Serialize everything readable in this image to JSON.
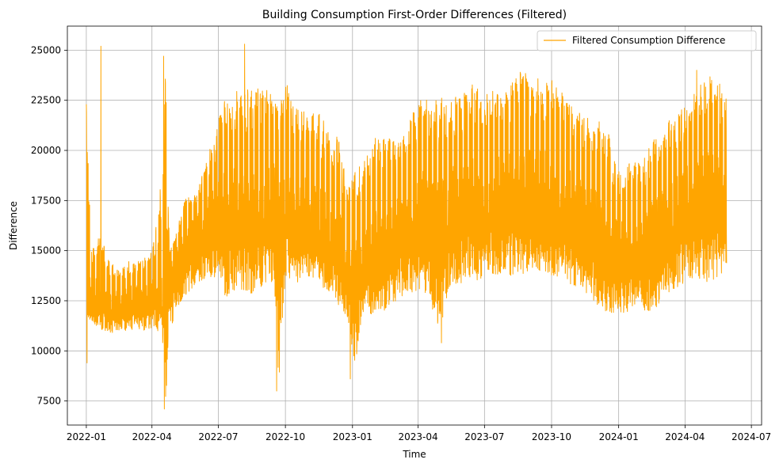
{
  "chart_data": {
    "type": "line",
    "title": "Building Consumption First-Order Differences (Filtered)",
    "xlabel": "Time",
    "ylabel": "Difference",
    "xlim": [
      "2021-12-06",
      "2024-07-15"
    ],
    "ylim": [
      6300,
      26200
    ],
    "x_ticks": [
      "2022-01-01",
      "2022-04-01",
      "2022-07-01",
      "2022-10-01",
      "2023-01-01",
      "2023-04-01",
      "2023-07-01",
      "2023-10-01",
      "2024-01-01",
      "2024-04-01",
      "2024-07-01"
    ],
    "x_tick_labels": [
      "2022-01",
      "2022-04",
      "2022-07",
      "2022-10",
      "2023-01",
      "2023-04",
      "2023-07",
      "2023-10",
      "2024-01",
      "2024-04",
      "2024-07"
    ],
    "y_ticks": [
      7500,
      10000,
      12500,
      15000,
      17500,
      20000,
      22500,
      25000
    ],
    "y_tick_labels": [
      "7500",
      "10000",
      "12500",
      "15000",
      "17500",
      "20000",
      "22500",
      "25000"
    ],
    "grid": true,
    "legend_position": "top-right",
    "series": [
      {
        "name": "Filtered Consumption Difference",
        "color": "#ffa500",
        "envelope": {
          "x": [
            "2022-01-01",
            "2022-01-03",
            "2022-01-08",
            "2022-01-15",
            "2022-01-20",
            "2022-02-01",
            "2022-02-15",
            "2022-03-01",
            "2022-03-15",
            "2022-04-01",
            "2022-04-10",
            "2022-04-15",
            "2022-04-20",
            "2022-04-25",
            "2022-05-01",
            "2022-05-15",
            "2022-06-01",
            "2022-06-15",
            "2022-07-01",
            "2022-07-10",
            "2022-08-01",
            "2022-08-15",
            "2022-09-01",
            "2022-09-15",
            "2022-09-22",
            "2022-10-01",
            "2022-10-15",
            "2022-11-01",
            "2022-11-15",
            "2022-12-01",
            "2022-12-15",
            "2022-12-25",
            "2023-01-05",
            "2023-01-15",
            "2023-02-01",
            "2023-02-15",
            "2023-03-01",
            "2023-03-15",
            "2023-04-01",
            "2023-04-15",
            "2023-05-01",
            "2023-05-15",
            "2023-06-01",
            "2023-06-15",
            "2023-07-01",
            "2023-07-15",
            "2023-08-01",
            "2023-08-15",
            "2023-09-01",
            "2023-09-15",
            "2023-10-01",
            "2023-10-15",
            "2023-11-01",
            "2023-11-15",
            "2023-12-01",
            "2023-12-15",
            "2024-01-01",
            "2024-01-15",
            "2024-02-01",
            "2024-02-15",
            "2024-03-01",
            "2024-03-15",
            "2024-04-01",
            "2024-04-15",
            "2024-05-01",
            "2024-05-15",
            "2024-05-28"
          ],
          "y_high": [
            22300,
            21000,
            15000,
            15500,
            16000,
            14500,
            14000,
            14500,
            14500,
            15000,
            17000,
            19500,
            24700,
            15000,
            15500,
            17500,
            18000,
            19500,
            21500,
            22700,
            23300,
            23000,
            23300,
            23000,
            22000,
            23600,
            22300,
            21800,
            22000,
            21000,
            20700,
            18500,
            19000,
            19500,
            20700,
            20700,
            20500,
            21000,
            22700,
            22500,
            22700,
            22500,
            23000,
            23300,
            22800,
            23000,
            23200,
            23800,
            24000,
            23700,
            23500,
            23000,
            22000,
            21800,
            21500,
            21300,
            19000,
            19500,
            19500,
            20500,
            21200,
            21700,
            22400,
            23000,
            23800,
            23500,
            22800
          ],
          "y_low": [
            9400,
            10900,
            11200,
            11000,
            10900,
            10800,
            10800,
            11000,
            10900,
            11000,
            10800,
            10600,
            7100,
            10500,
            11500,
            12500,
            13200,
            13500,
            13500,
            12400,
            12800,
            12600,
            12900,
            13300,
            8000,
            13400,
            13200,
            13300,
            13100,
            12800,
            12000,
            11500,
            8600,
            11800,
            11500,
            11600,
            12300,
            12600,
            12800,
            12500,
            10400,
            13000,
            13100,
            13200,
            13300,
            13500,
            13400,
            13500,
            13700,
            13600,
            13500,
            13200,
            13000,
            12800,
            12000,
            11700,
            11600,
            11800,
            12000,
            11500,
            12300,
            12700,
            13200,
            13500,
            13100,
            13400,
            13600
          ],
          "y_mid": [
            15500,
            13000,
            12800,
            13000,
            13200,
            12500,
            12500,
            12700,
            12800,
            13000,
            13200,
            13500,
            15500,
            14000,
            14500,
            15500,
            16200,
            16700,
            17500,
            17500,
            17800,
            17500,
            17800,
            18000,
            17000,
            18200,
            17500,
            17200,
            17000,
            16000,
            15300,
            14500,
            14500,
            14800,
            15500,
            15800,
            16200,
            16800,
            17500,
            17500,
            17000,
            17800,
            18200,
            18300,
            18000,
            18200,
            18300,
            18500,
            18800,
            18600,
            18400,
            18000,
            17500,
            17200,
            16500,
            16000,
            15300,
            15500,
            15800,
            16200,
            16800,
            17200,
            17800,
            18000,
            18300,
            18300,
            18000
          ]
        },
        "spikes": [
          {
            "x": "2022-01-01",
            "y": 22300
          },
          {
            "x": "2022-01-02",
            "y": 9400
          },
          {
            "x": "2022-01-21",
            "y": 25200
          },
          {
            "x": "2022-04-17",
            "y": 24700
          },
          {
            "x": "2022-04-18",
            "y": 7100
          },
          {
            "x": "2022-08-06",
            "y": 25300
          },
          {
            "x": "2022-09-19",
            "y": 8000
          },
          {
            "x": "2022-12-29",
            "y": 8600
          },
          {
            "x": "2023-05-03",
            "y": 10400
          },
          {
            "x": "2023-08-19",
            "y": 23900
          },
          {
            "x": "2024-04-17",
            "y": 24000
          }
        ]
      }
    ]
  }
}
